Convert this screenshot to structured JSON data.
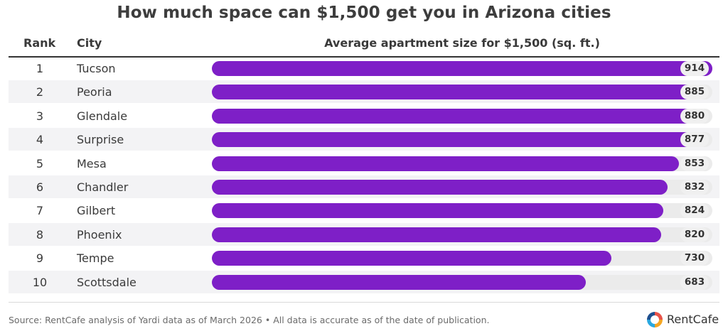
{
  "title": "How much space can $1,500 get you in Arizona cities",
  "headers": {
    "rank": "Rank",
    "city": "City",
    "metric": "Average apartment size for $1,500 (sq. ft.)"
  },
  "source": "Source: RentCafe analysis of Yardi data as of March 2026 • All data is accurate as of the date of publication.",
  "brand": {
    "name": "RentCafe",
    "icon": "rentcafe-logo-icon",
    "colors": [
      "#e8534a",
      "#f5a623",
      "#2aa8e0",
      "#1f4f8f"
    ]
  },
  "colors": {
    "bar": "#7e1fc7",
    "track": "#ebebeb",
    "stripe": "#f3f3f5"
  },
  "chart_data": {
    "type": "bar",
    "title": "How much space can $1,500 get you in Arizona cities",
    "ylabel": "Average apartment size for $1,500 (sq. ft.)",
    "xlim": [
      0,
      914
    ],
    "rows": [
      {
        "rank": "1",
        "city": "Tucson",
        "value": 914
      },
      {
        "rank": "2",
        "city": "Peoria",
        "value": 885
      },
      {
        "rank": "3",
        "city": "Glendale",
        "value": 880
      },
      {
        "rank": "4",
        "city": "Surprise",
        "value": 877
      },
      {
        "rank": "5",
        "city": "Mesa",
        "value": 853
      },
      {
        "rank": "6",
        "city": "Chandler",
        "value": 832
      },
      {
        "rank": "7",
        "city": "Gilbert",
        "value": 824
      },
      {
        "rank": "8",
        "city": "Phoenix",
        "value": 820
      },
      {
        "rank": "9",
        "city": "Tempe",
        "value": 730
      },
      {
        "rank": "10",
        "city": "Scottsdale",
        "value": 683
      }
    ]
  }
}
